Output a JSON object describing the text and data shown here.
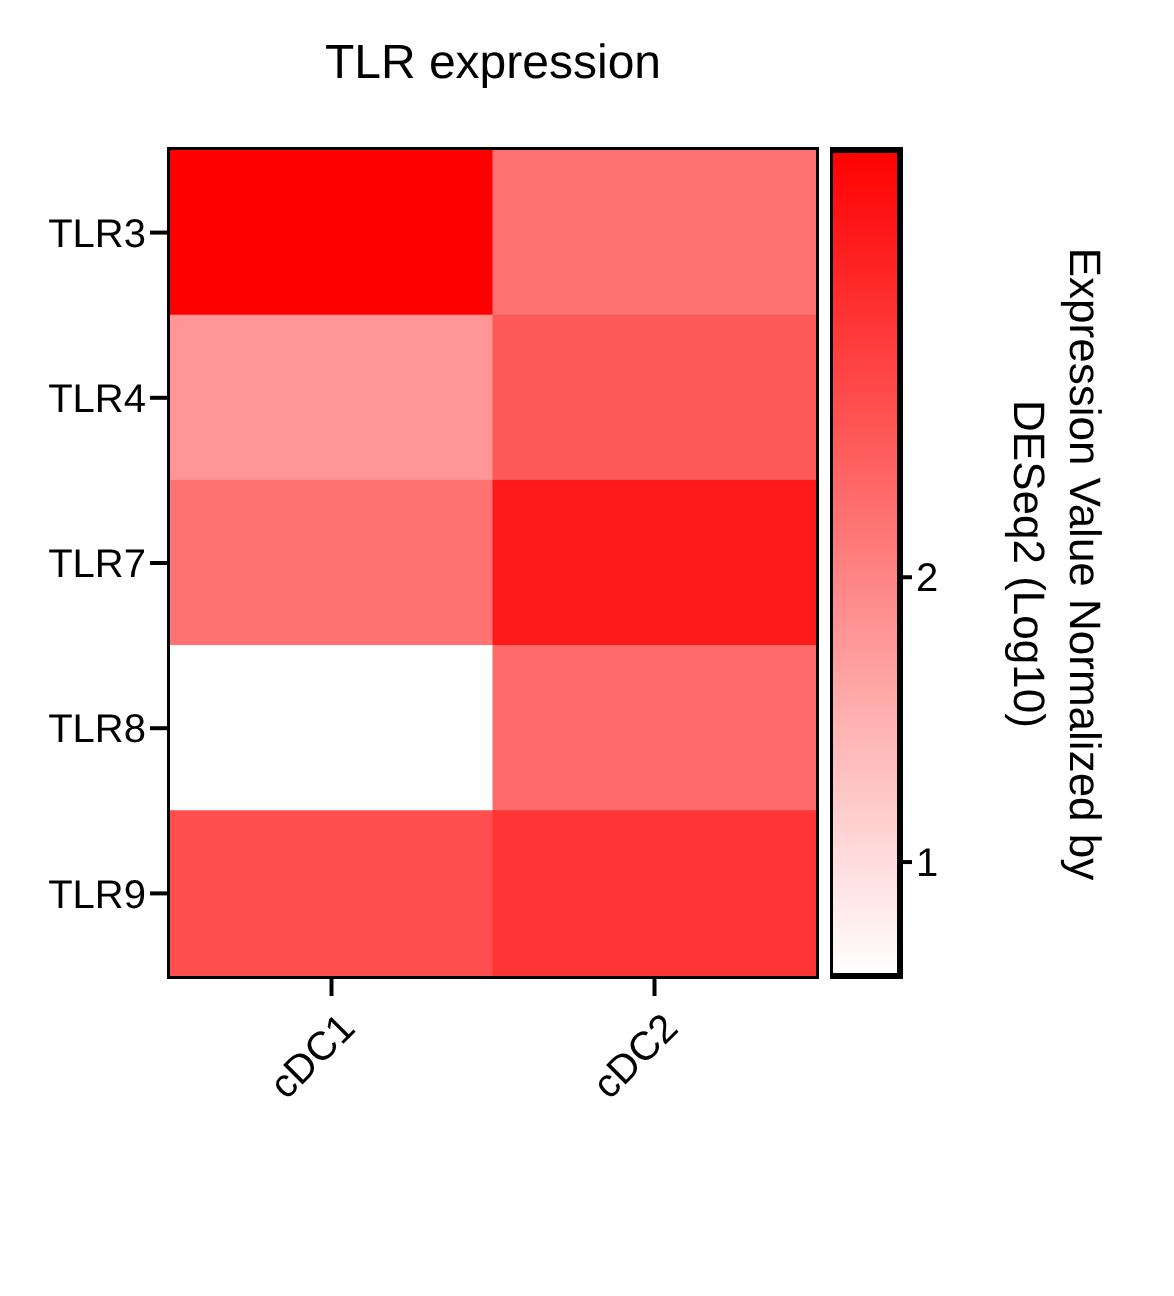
{
  "chart_data": {
    "type": "heatmap",
    "title": "TLR expression",
    "clabel": "Expression Value Normalized by DESeq2 (Log10)",
    "categories": [
      "cDC1",
      "cDC2"
    ],
    "y_categories": [
      "TLR3",
      "TLR4",
      "TLR7",
      "TLR8",
      "TLR9"
    ],
    "cells": [
      [
        3.5,
        2.2
      ],
      [
        1.8,
        2.5
      ],
      [
        2.2,
        3.2
      ],
      [
        0.6,
        2.3
      ],
      [
        2.6,
        2.9
      ]
    ],
    "clim": [
      0.6,
      3.5
    ],
    "cticks": [
      1,
      2
    ]
  }
}
